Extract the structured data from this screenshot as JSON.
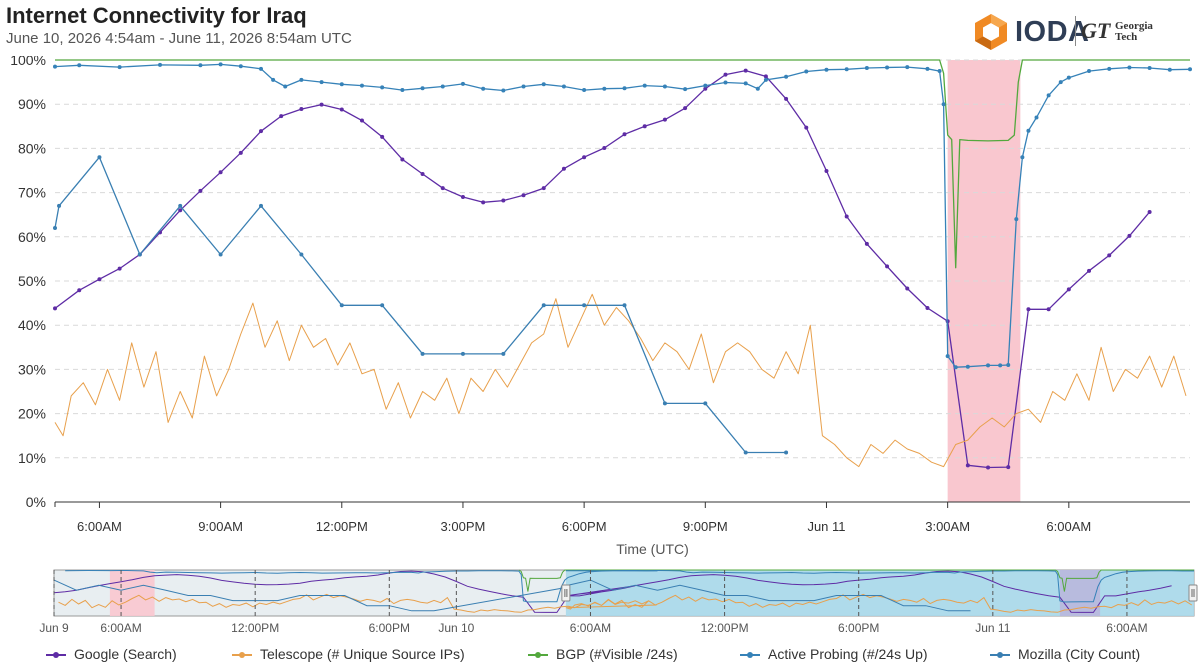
{
  "header": {
    "title": "Internet Connectivity for Iraq",
    "subtitle": "June 10, 2026 4:54am - June 11, 2026 8:54am UTC"
  },
  "logo": {
    "name": "IODA",
    "partner_mark": "GT",
    "partner_name_line1": "Georgia",
    "partner_name_line2": "Tech"
  },
  "chart_data": {
    "type": "line",
    "title": "Internet Connectivity for Iraq",
    "subtitle": "June 10, 2026 4:54am - June 11, 2026 8:54am UTC",
    "xlabel": "Time (UTC)",
    "ylabel": "",
    "time_axis_start_hours": 4.9,
    "x_range_hours": [
      4.9,
      33.0
    ],
    "ylim": [
      0,
      100
    ],
    "y_ticks": [
      "0%",
      "10%",
      "20%",
      "30%",
      "40%",
      "50%",
      "60%",
      "70%",
      "80%",
      "90%",
      "100%"
    ],
    "x_ticks": [
      {
        "hour": 6,
        "label": "6:00AM"
      },
      {
        "hour": 9,
        "label": "9:00AM"
      },
      {
        "hour": 12,
        "label": "12:00PM"
      },
      {
        "hour": 15,
        "label": "3:00PM"
      },
      {
        "hour": 18,
        "label": "6:00PM"
      },
      {
        "hour": 21,
        "label": "9:00PM"
      },
      {
        "hour": 24,
        "label": "Jun 11"
      },
      {
        "hour": 27,
        "label": "3:00AM"
      },
      {
        "hour": 30,
        "label": "6:00AM"
      }
    ],
    "grid": "horizontal dashed",
    "legend_position": "bottom",
    "highlight_region": {
      "start": 27.0,
      "end": 28.8,
      "color": "#f9c7cf"
    },
    "series": [
      {
        "name": "Google (Search)",
        "color": "#5e2ca5",
        "marker": "dot",
        "points": [
          [
            4.9,
            43.8
          ],
          [
            5.5,
            47.9
          ],
          [
            6.0,
            50.4
          ],
          [
            6.5,
            52.8
          ],
          [
            7.0,
            56.0
          ],
          [
            7.5,
            61.0
          ],
          [
            8.0,
            66.0
          ],
          [
            8.5,
            70.4
          ],
          [
            9.0,
            74.6
          ],
          [
            9.5,
            79.0
          ],
          [
            10.0,
            83.9
          ],
          [
            10.5,
            87.3
          ],
          [
            11.0,
            88.9
          ],
          [
            11.5,
            89.9
          ],
          [
            12.0,
            88.8
          ],
          [
            12.5,
            86.3
          ],
          [
            13.0,
            82.6
          ],
          [
            13.5,
            77.5
          ],
          [
            14.0,
            74.2
          ],
          [
            14.5,
            71.0
          ],
          [
            15.0,
            69.0
          ],
          [
            15.5,
            67.8
          ],
          [
            16.0,
            68.2
          ],
          [
            16.5,
            69.4
          ],
          [
            17.0,
            71.0
          ],
          [
            17.5,
            75.4
          ],
          [
            18.0,
            78.0
          ],
          [
            18.5,
            80.1
          ],
          [
            19.0,
            83.2
          ],
          [
            19.5,
            85.0
          ],
          [
            20.0,
            86.5
          ],
          [
            20.5,
            89.1
          ],
          [
            21.0,
            93.5
          ],
          [
            21.5,
            96.7
          ],
          [
            22.0,
            97.6
          ],
          [
            22.5,
            96.3
          ],
          [
            23.0,
            91.2
          ],
          [
            23.5,
            84.7
          ],
          [
            24.0,
            74.9
          ],
          [
            24.5,
            64.6
          ],
          [
            25.0,
            58.4
          ],
          [
            25.5,
            53.3
          ],
          [
            26.0,
            48.3
          ],
          [
            26.5,
            43.9
          ],
          [
            27.0,
            40.9
          ],
          [
            27.5,
            8.3
          ],
          [
            28.0,
            7.8
          ],
          [
            28.5,
            7.9
          ],
          [
            29.0,
            43.6
          ],
          [
            29.5,
            43.6
          ],
          [
            30.0,
            48.1
          ],
          [
            30.5,
            52.3
          ],
          [
            31.0,
            55.8
          ],
          [
            31.5,
            60.2
          ],
          [
            32.0,
            65.6
          ]
        ]
      },
      {
        "name": "Telescope (# Unique Source IPs)",
        "color": "#e8a04c",
        "marker": "none",
        "points": [
          [
            4.9,
            18
          ],
          [
            5.1,
            15
          ],
          [
            5.3,
            24
          ],
          [
            5.6,
            27
          ],
          [
            5.9,
            22
          ],
          [
            6.2,
            30
          ],
          [
            6.5,
            23
          ],
          [
            6.8,
            36
          ],
          [
            7.1,
            26
          ],
          [
            7.4,
            34
          ],
          [
            7.7,
            18
          ],
          [
            8.0,
            25
          ],
          [
            8.3,
            19
          ],
          [
            8.6,
            33
          ],
          [
            8.9,
            24
          ],
          [
            9.2,
            30
          ],
          [
            9.5,
            38
          ],
          [
            9.8,
            45
          ],
          [
            10.1,
            35
          ],
          [
            10.4,
            41
          ],
          [
            10.7,
            32
          ],
          [
            11.0,
            40
          ],
          [
            11.3,
            35
          ],
          [
            11.6,
            37
          ],
          [
            11.9,
            31
          ],
          [
            12.2,
            36
          ],
          [
            12.5,
            29
          ],
          [
            12.8,
            30
          ],
          [
            13.1,
            21
          ],
          [
            13.4,
            27
          ],
          [
            13.7,
            19
          ],
          [
            14.0,
            25
          ],
          [
            14.3,
            23
          ],
          [
            14.6,
            28
          ],
          [
            14.9,
            20
          ],
          [
            15.2,
            28
          ],
          [
            15.5,
            25
          ],
          [
            15.8,
            30
          ],
          [
            16.1,
            26
          ],
          [
            16.4,
            31
          ],
          [
            16.7,
            36
          ],
          [
            17.0,
            38
          ],
          [
            17.3,
            46
          ],
          [
            17.6,
            35
          ],
          [
            17.9,
            41
          ],
          [
            18.2,
            47
          ],
          [
            18.5,
            40
          ],
          [
            18.8,
            44
          ],
          [
            19.1,
            41
          ],
          [
            19.4,
            37
          ],
          [
            19.7,
            32
          ],
          [
            20.0,
            36
          ],
          [
            20.3,
            34
          ],
          [
            20.6,
            30
          ],
          [
            20.9,
            38
          ],
          [
            21.2,
            27
          ],
          [
            21.5,
            34
          ],
          [
            21.8,
            36
          ],
          [
            22.1,
            34
          ],
          [
            22.4,
            30
          ],
          [
            22.7,
            28
          ],
          [
            23.0,
            34
          ],
          [
            23.3,
            29
          ],
          [
            23.6,
            40
          ],
          [
            23.9,
            15
          ],
          [
            24.2,
            13
          ],
          [
            24.5,
            10
          ],
          [
            24.8,
            8
          ],
          [
            25.1,
            13
          ],
          [
            25.4,
            11
          ],
          [
            25.7,
            14
          ],
          [
            26.0,
            12
          ],
          [
            26.3,
            11
          ],
          [
            26.6,
            9
          ],
          [
            26.9,
            8
          ],
          [
            27.2,
            13
          ],
          [
            27.5,
            14
          ],
          [
            27.8,
            17
          ],
          [
            28.1,
            19
          ],
          [
            28.4,
            17
          ],
          [
            28.7,
            20
          ],
          [
            29.0,
            21
          ],
          [
            29.3,
            18
          ],
          [
            29.6,
            25
          ],
          [
            29.9,
            23
          ],
          [
            30.2,
            29
          ],
          [
            30.5,
            23
          ],
          [
            30.8,
            35
          ],
          [
            31.1,
            25
          ],
          [
            31.4,
            30
          ],
          [
            31.7,
            28
          ],
          [
            32.0,
            33
          ],
          [
            32.3,
            26
          ],
          [
            32.6,
            33
          ],
          [
            32.9,
            24
          ]
        ]
      },
      {
        "name": "BGP (#Visible /24s)",
        "color": "#53a83d",
        "marker": "none",
        "points": [
          [
            4.9,
            100
          ],
          [
            26.8,
            100
          ],
          [
            26.9,
            97
          ],
          [
            27.0,
            83
          ],
          [
            27.1,
            82
          ],
          [
            27.2,
            53
          ],
          [
            27.3,
            82
          ],
          [
            27.5,
            81.8
          ],
          [
            28.0,
            81.7
          ],
          [
            28.5,
            81.8
          ],
          [
            28.65,
            83
          ],
          [
            28.75,
            95
          ],
          [
            28.85,
            100
          ],
          [
            33.0,
            100
          ]
        ]
      },
      {
        "name": "Active Probing (#/24s Up)",
        "color": "#3682b8",
        "marker": "dot",
        "points": [
          [
            4.9,
            98.5
          ],
          [
            5.5,
            98.8
          ],
          [
            6.5,
            98.4
          ],
          [
            7.5,
            98.9
          ],
          [
            8.5,
            98.8
          ],
          [
            9.0,
            99.0
          ],
          [
            9.5,
            98.6
          ],
          [
            10.0,
            98.0
          ],
          [
            10.3,
            95.5
          ],
          [
            10.6,
            94.0
          ],
          [
            11.0,
            95.5
          ],
          [
            11.5,
            95.0
          ],
          [
            12.0,
            94.5
          ],
          [
            12.5,
            94.2
          ],
          [
            13.0,
            93.8
          ],
          [
            13.5,
            93.2
          ],
          [
            14.0,
            93.6
          ],
          [
            14.5,
            94.0
          ],
          [
            15.0,
            94.6
          ],
          [
            15.5,
            93.5
          ],
          [
            16.0,
            93.1
          ],
          [
            16.5,
            94.0
          ],
          [
            17.0,
            94.5
          ],
          [
            17.5,
            94.0
          ],
          [
            18.0,
            93.2
          ],
          [
            18.5,
            93.5
          ],
          [
            19.0,
            93.6
          ],
          [
            19.5,
            94.2
          ],
          [
            20.0,
            94.0
          ],
          [
            20.5,
            93.4
          ],
          [
            21.0,
            94.2
          ],
          [
            21.5,
            94.9
          ],
          [
            22.0,
            94.7
          ],
          [
            22.3,
            93.5
          ],
          [
            22.5,
            95.5
          ],
          [
            23.0,
            96.2
          ],
          [
            23.5,
            97.4
          ],
          [
            24.0,
            97.8
          ],
          [
            24.5,
            97.9
          ],
          [
            25.0,
            98.2
          ],
          [
            25.5,
            98.3
          ],
          [
            26.0,
            98.4
          ],
          [
            26.5,
            98.0
          ],
          [
            26.8,
            97.5
          ],
          [
            26.9,
            90
          ],
          [
            27.0,
            33
          ],
          [
            27.2,
            30.5
          ],
          [
            27.5,
            30.6
          ],
          [
            28.0,
            30.9
          ],
          [
            28.3,
            30.9
          ],
          [
            28.5,
            31.0
          ],
          [
            28.7,
            64
          ],
          [
            28.85,
            78
          ],
          [
            29.0,
            84
          ],
          [
            29.2,
            87
          ],
          [
            29.5,
            92
          ],
          [
            29.8,
            95
          ],
          [
            30.0,
            96
          ],
          [
            30.5,
            97.5
          ],
          [
            31.0,
            98.0
          ],
          [
            31.5,
            98.3
          ],
          [
            32.0,
            98.2
          ],
          [
            32.5,
            97.8
          ],
          [
            33.0,
            97.9
          ]
        ]
      },
      {
        "name": "Mozilla (City Count)",
        "color": "#3a7fb2",
        "marker": "dot",
        "points": [
          [
            4.9,
            62
          ],
          [
            5.0,
            67
          ],
          [
            6.0,
            78
          ],
          [
            7.0,
            56
          ],
          [
            8.0,
            67
          ],
          [
            9.0,
            56
          ],
          [
            10.0,
            67
          ],
          [
            11.0,
            56
          ],
          [
            12.0,
            44.5
          ],
          [
            13.0,
            44.5
          ],
          [
            14.0,
            33.5
          ],
          [
            15.0,
            33.5
          ],
          [
            16.0,
            33.5
          ],
          [
            17.0,
            44.5
          ],
          [
            18.0,
            44.5
          ],
          [
            19.0,
            44.5
          ],
          [
            20.0,
            22.3
          ],
          [
            21.0,
            22.3
          ],
          [
            22.0,
            11.2
          ],
          [
            23.0,
            11.2
          ]
        ]
      }
    ]
  },
  "navigator": {
    "x_ticks": [
      {
        "hour": -18,
        "label": "Jun 9"
      },
      {
        "hour": -15,
        "label": "6:00AM"
      },
      {
        "hour": -9,
        "label": "12:00PM"
      },
      {
        "hour": -3,
        "label": "6:00PM"
      },
      {
        "hour": 0,
        "label": "Jun 10"
      },
      {
        "hour": 6,
        "label": "6:00AM"
      },
      {
        "hour": 12,
        "label": "12:00PM"
      },
      {
        "hour": 18,
        "label": "6:00PM"
      },
      {
        "hour": 24,
        "label": "Jun 11"
      },
      {
        "hour": 30,
        "label": "6:00AM"
      }
    ]
  },
  "legend": [
    {
      "label": "Google (Search)",
      "color": "#5e2ca5"
    },
    {
      "label": "Telescope (# Unique Source IPs)",
      "color": "#e8a04c"
    },
    {
      "label": "BGP (#Visible /24s)",
      "color": "#53a83d"
    },
    {
      "label": "Active Probing (#/24s Up)",
      "color": "#3682b8"
    },
    {
      "label": "Mozilla (City Count)",
      "color": "#3a7fb2"
    }
  ]
}
